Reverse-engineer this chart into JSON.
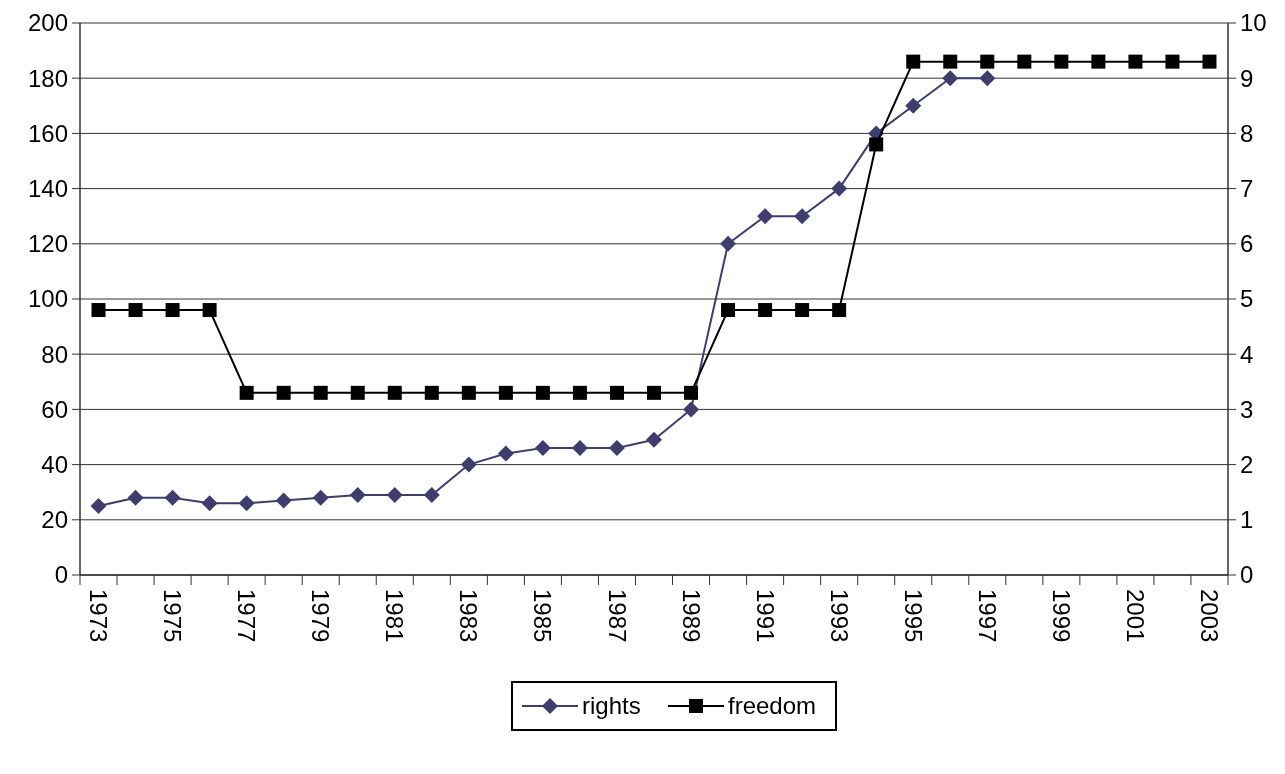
{
  "chart_data": {
    "type": "line",
    "categories": [
      "1973",
      null,
      "1975",
      null,
      "1977",
      null,
      "1979",
      null,
      "1981",
      null,
      "1983",
      null,
      "1985",
      null,
      "1987",
      null,
      "1989",
      null,
      "1991",
      null,
      "1993",
      null,
      "1995",
      null,
      "1997",
      null,
      "1999",
      null,
      "2001",
      null,
      "2003"
    ],
    "series": [
      {
        "name": "rights",
        "color": "#3f3d6e",
        "marker": "diamond",
        "values": [
          25,
          28,
          28,
          26,
          26,
          27,
          28,
          29,
          29,
          29,
          40,
          44,
          46,
          46,
          46,
          49,
          60,
          120,
          130,
          130,
          140,
          160,
          170,
          180,
          180,
          null,
          null,
          null,
          null,
          null,
          null
        ]
      },
      {
        "name": "freedom",
        "color": "#000000",
        "marker": "square",
        "axis": "y2",
        "values": [
          4.8,
          4.8,
          4.8,
          4.8,
          3.3,
          3.3,
          3.3,
          3.3,
          3.3,
          3.3,
          3.3,
          3.3,
          3.3,
          3.3,
          3.3,
          3.3,
          3.3,
          4.8,
          4.8,
          4.8,
          4.8,
          7.8,
          9.3,
          9.3,
          9.3,
          9.3,
          9.3,
          9.3,
          9.3,
          9.3,
          9.3
        ]
      }
    ],
    "ylim": [
      0,
      200
    ],
    "yticks": [
      0,
      20,
      40,
      60,
      80,
      100,
      120,
      140,
      160,
      180,
      200
    ],
    "y2lim": [
      0,
      10
    ],
    "y2ticks": [
      0,
      1,
      2,
      3,
      4,
      5,
      6,
      7,
      8,
      9,
      10
    ],
    "grid": "y",
    "legend": "bottom"
  }
}
